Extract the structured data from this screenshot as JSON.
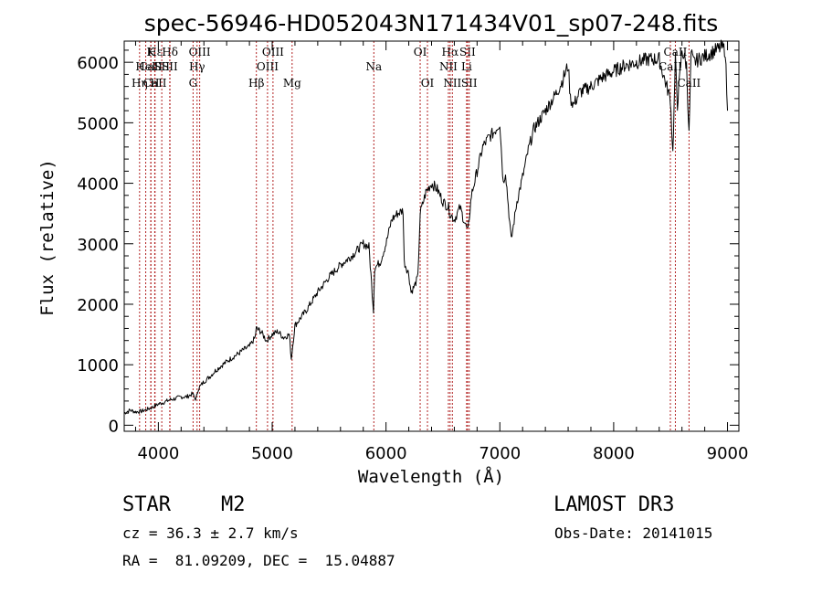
{
  "chart_data": {
    "type": "line",
    "title": "spec-56946-HD052043N171434V01_sp07-248.fits",
    "xlabel": "Wavelength (Å)",
    "ylabel": "Flux (relative)",
    "xlim": [
      3700,
      9100
    ],
    "ylim": [
      -100,
      6350
    ],
    "xticks": [
      4000,
      5000,
      6000,
      7000,
      8000,
      9000
    ],
    "yticks": [
      0,
      1000,
      2000,
      3000,
      4000,
      5000,
      6000
    ],
    "xtick_labels": [
      "4000",
      "5000",
      "6000",
      "7000",
      "8000",
      "9000"
    ],
    "ytick_labels": [
      "0",
      "1000",
      "2000",
      "3000",
      "4000",
      "5000",
      "6000"
    ],
    "series": [
      {
        "name": "spectrum",
        "x": [
          3700,
          3750,
          3800,
          3850,
          3900,
          3950,
          4000,
          4050,
          4100,
          4150,
          4200,
          4250,
          4300,
          4330,
          4350,
          4400,
          4450,
          4500,
          4550,
          4600,
          4650,
          4700,
          4750,
          4800,
          4850,
          4860,
          4900,
          4950,
          5000,
          5050,
          5100,
          5150,
          5168,
          5200,
          5300,
          5400,
          5500,
          5600,
          5700,
          5800,
          5850,
          5890,
          5900,
          5950,
          6000,
          6050,
          6100,
          6150,
          6160,
          6200,
          6220,
          6250,
          6280,
          6300,
          6350,
          6400,
          6450,
          6500,
          6550,
          6563,
          6600,
          6650,
          6700,
          6720,
          6750,
          6800,
          6850,
          6900,
          6950,
          7000,
          7030,
          7050,
          7080,
          7100,
          7150,
          7200,
          7250,
          7300,
          7400,
          7500,
          7550,
          7600,
          7620,
          7650,
          7700,
          7800,
          7900,
          8000,
          8100,
          8200,
          8300,
          8400,
          8450,
          8498,
          8520,
          8542,
          8560,
          8600,
          8640,
          8662,
          8680,
          8700,
          8750,
          8800,
          8850,
          8900,
          8950,
          8980,
          9000
        ],
        "y": [
          200,
          250,
          220,
          230,
          260,
          300,
          350,
          380,
          420,
          440,
          470,
          470,
          520,
          420,
          600,
          720,
          800,
          900,
          980,
          1050,
          1120,
          1180,
          1250,
          1300,
          1450,
          1600,
          1550,
          1400,
          1500,
          1550,
          1450,
          1500,
          1100,
          1650,
          1900,
          2200,
          2450,
          2650,
          2800,
          3000,
          2950,
          1900,
          2600,
          2700,
          3000,
          3400,
          3500,
          3550,
          2700,
          2500,
          2200,
          2300,
          2450,
          3500,
          3850,
          4000,
          3900,
          3700,
          3600,
          3500,
          3400,
          3600,
          3300,
          3200,
          3800,
          4200,
          4600,
          4750,
          4850,
          5000,
          4000,
          4200,
          3500,
          3050,
          3700,
          4100,
          4550,
          4900,
          5200,
          5500,
          5700,
          5950,
          5400,
          5300,
          5500,
          5600,
          5750,
          5850,
          5950,
          6000,
          6050,
          6050,
          5700,
          5400,
          4500,
          6050,
          5300,
          6200,
          5950,
          4800,
          6150,
          6000,
          6050,
          6100,
          6150,
          6200,
          6250,
          6200,
          5200
        ],
        "color": "#000000"
      }
    ],
    "spectral_lines": [
      {
        "label": "Hε",
        "x": 3970,
        "row": 1
      },
      {
        "label": "CaII",
        "x": 3935,
        "row": 2
      },
      {
        "label": "CaII",
        "x": 3970,
        "row": 3
      },
      {
        "label": "K",
        "x": 3933,
        "row": 1
      },
      {
        "label": "HeI",
        "x": 3889,
        "row": 2
      },
      {
        "label": "Hη",
        "x": 3835,
        "row": 3
      },
      {
        "label": "SII",
        "x": 4030,
        "row": 2
      },
      {
        "label": "H",
        "x": 3968,
        "row": 3
      },
      {
        "label": "Hδ",
        "x": 4102,
        "row": 1
      },
      {
        "label": "SII",
        "x": 4100,
        "row": 2
      },
      {
        "label": "OIII",
        "x": 4363,
        "row": 1
      },
      {
        "label": "Hγ",
        "x": 4340,
        "row": 2
      },
      {
        "label": "G",
        "x": 4305,
        "row": 3
      },
      {
        "label": "Hβ",
        "x": 4861,
        "row": 3
      },
      {
        "label": "OIII",
        "x": 5007,
        "row": 1
      },
      {
        "label": "OIII",
        "x": 4959,
        "row": 2
      },
      {
        "label": "Mg",
        "x": 5175,
        "row": 3
      },
      {
        "label": "Na",
        "x": 5893,
        "row": 2
      },
      {
        "label": "OI",
        "x": 6300,
        "row": 1
      },
      {
        "label": "OI",
        "x": 6364,
        "row": 3
      },
      {
        "label": "Hα",
        "x": 6563,
        "row": 1
      },
      {
        "label": "NII",
        "x": 6548,
        "row": 2
      },
      {
        "label": "NII",
        "x": 6583,
        "row": 3
      },
      {
        "label": "SII",
        "x": 6716,
        "row": 1
      },
      {
        "label": "Li",
        "x": 6708,
        "row": 2
      },
      {
        "label": "SII",
        "x": 6731,
        "row": 3
      },
      {
        "label": "CaII",
        "x": 8542,
        "row": 1
      },
      {
        "label": "CaII",
        "x": 8498,
        "row": 2
      },
      {
        "label": "CaII",
        "x": 8662,
        "row": 3
      }
    ]
  },
  "info": {
    "object_type": "STAR",
    "subclass": "M2",
    "survey": "LAMOST DR3",
    "cz": "cz = 36.3 ± 2.7 km/s",
    "obs_date": "Obs-Date: 20141015",
    "coords": "RA =  81.09209, DEC =  15.04887"
  }
}
